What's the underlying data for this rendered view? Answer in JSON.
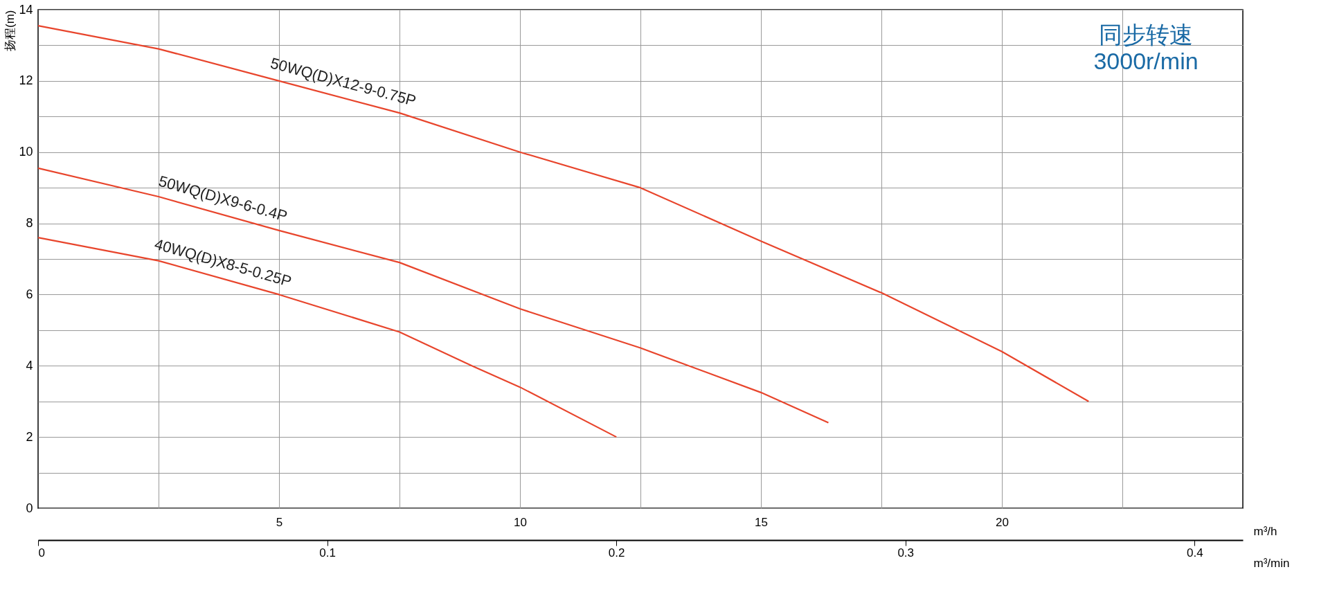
{
  "chart_data": {
    "type": "line",
    "ylabel": "扬程(m)",
    "xlabel": "m³/h",
    "x2label": "m³/min",
    "xlim": [
      0,
      25
    ],
    "xticks": [
      {
        "value": 2.5,
        "label": null
      },
      5,
      {
        "value": 7.5,
        "label": null
      },
      10,
      {
        "value": 12.5,
        "label": null
      },
      15,
      {
        "value": 17.5,
        "label": null
      },
      20,
      {
        "value": 22.5,
        "label": null
      }
    ],
    "x2lim": [
      0,
      0.4167
    ],
    "x2ticks": [
      0,
      0.1,
      0.2,
      0.3,
      0.4
    ],
    "ylim": [
      0,
      14
    ],
    "yticks": [
      0,
      {
        "value": 1,
        "label": null
      },
      2,
      {
        "value": 3,
        "label": null
      },
      4,
      {
        "value": 5,
        "label": null
      },
      6,
      {
        "value": 7,
        "label": null
      },
      8,
      {
        "value": 9,
        "label": null
      },
      10,
      {
        "value": 11,
        "label": null
      },
      12,
      {
        "value": 13,
        "label": null
      },
      14
    ],
    "grid": true,
    "legend": false,
    "marker": "none",
    "line_style": "solid",
    "annotations": [
      "同步转速",
      "3000r/min"
    ],
    "series": [
      {
        "name": "50WQ(D)X12-9-0.75P",
        "color": "#e8452c",
        "x": [
          0,
          2.5,
          5,
          7.5,
          10,
          12.5,
          15,
          17.5,
          20,
          21.8
        ],
        "values": [
          13.55,
          12.9,
          12.0,
          11.1,
          10.0,
          9.0,
          7.5,
          6.05,
          4.4,
          3.0
        ]
      },
      {
        "name": "50WQ(D)X9-6-0.4P",
        "color": "#e8452c",
        "x": [
          0,
          2.5,
          5,
          7.5,
          10,
          12.5,
          15,
          16.4
        ],
        "values": [
          9.55,
          8.75,
          7.8,
          6.9,
          5.6,
          4.5,
          3.25,
          2.4
        ]
      },
      {
        "name": "40WQ(D)X8-5-0.25P",
        "color": "#e8452c",
        "x": [
          0,
          2.5,
          5,
          7.5,
          9,
          10,
          12.0
        ],
        "values": [
          7.6,
          6.95,
          6.0,
          4.95,
          4.0,
          3.4,
          2.0
        ]
      }
    ]
  }
}
